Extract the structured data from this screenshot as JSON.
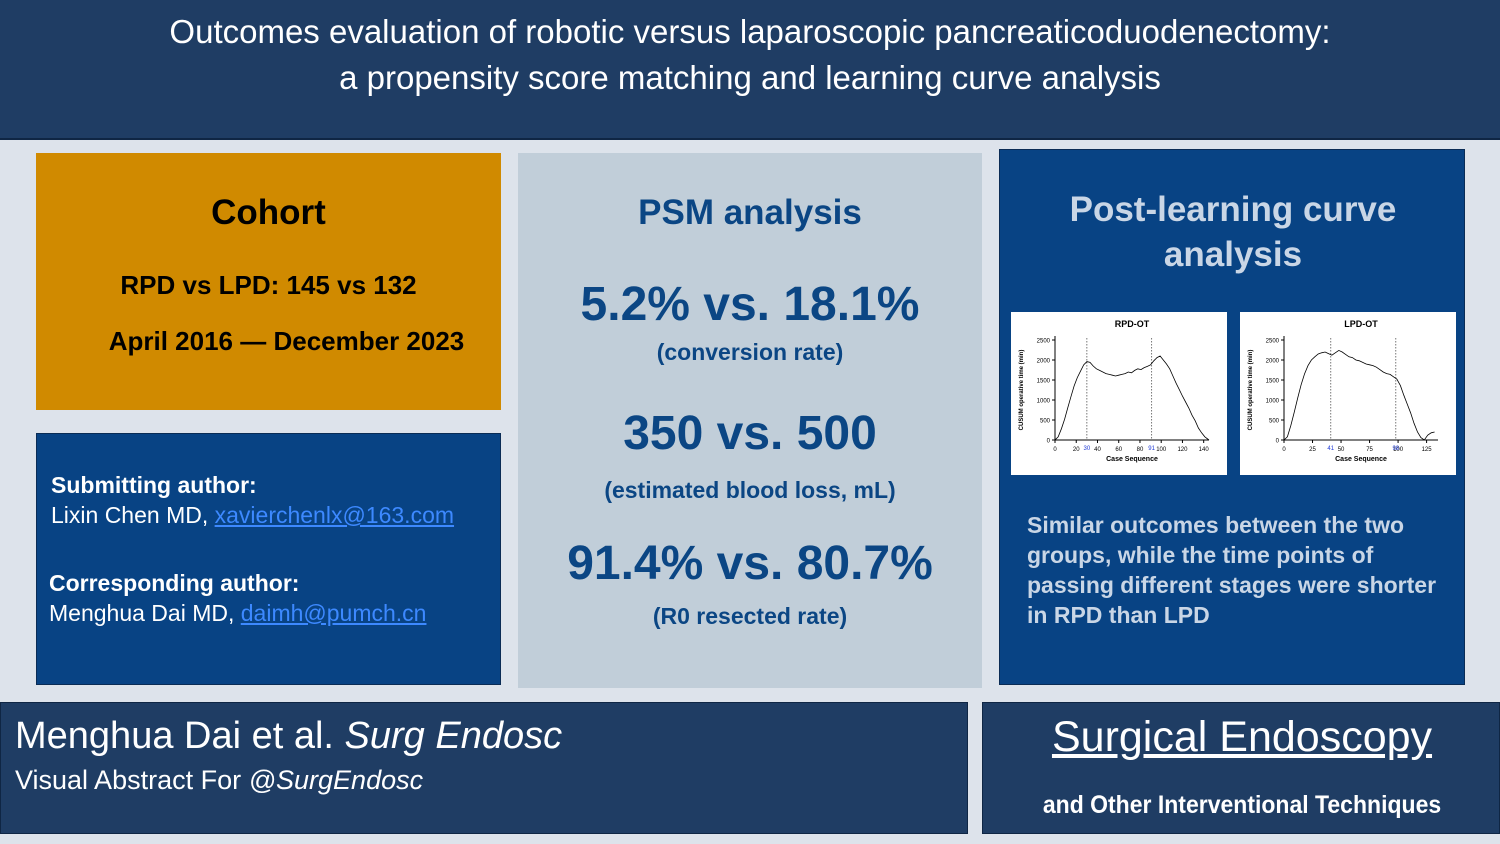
{
  "header": {
    "title_line1": "Outcomes evaluation of robotic versus laparoscopic pancreaticoduodenectomy:",
    "title_line2": "a propensity score matching and learning curve analysis"
  },
  "cohort": {
    "heading": "Cohort",
    "comparison": "RPD vs LPD: 145 vs 132",
    "period": "April 2016 — December 2023"
  },
  "authors": {
    "submitting_label": "Submitting author:",
    "submitting_name": "Lixin Chen MD, ",
    "submitting_email": "xavierchenlx@163.com",
    "corresponding_label": "Corresponding author:",
    "corresponding_name": "Menghua Dai MD, ",
    "corresponding_email": "daimh@pumch.cn"
  },
  "psm": {
    "heading": "PSM analysis",
    "stats": [
      {
        "value": "5.2% vs. 18.1%",
        "label": "(conversion rate)"
      },
      {
        "value": "350 vs. 500",
        "label": "(estimated blood loss, mL)"
      },
      {
        "value": "91.4% vs. 80.7%",
        "label": "(R0 resected rate)"
      }
    ]
  },
  "post_learning": {
    "heading_line1": "Post-learning curve",
    "heading_line2": "analysis",
    "summary": "Similar outcomes between the two groups, while the time points of passing different stages were shorter in RPD than LPD"
  },
  "chart_data": [
    {
      "type": "line",
      "title": "RPD-OT",
      "xlabel": "Case Sequence",
      "ylabel": "CUSUM operative time (min)",
      "xticks": [
        "0",
        "20",
        "40",
        "60",
        "80",
        "100",
        "120",
        "140"
      ],
      "yticks": [
        "0",
        "500",
        "1000",
        "1500",
        "2000",
        "2500"
      ],
      "xlim": [
        0,
        145
      ],
      "ylim": [
        0,
        2500
      ],
      "cut_points": [
        "30",
        "91"
      ],
      "x": [
        0,
        3,
        6,
        9,
        12,
        15,
        18,
        21,
        24,
        27,
        30,
        33,
        36,
        39,
        42,
        45,
        48,
        51,
        54,
        57,
        60,
        63,
        66,
        69,
        72,
        75,
        78,
        81,
        84,
        87,
        90,
        93,
        96,
        99,
        102,
        105,
        108,
        111,
        114,
        117,
        120,
        123,
        126,
        129,
        132,
        135,
        138,
        141,
        145
      ],
      "values": [
        0,
        80,
        280,
        520,
        800,
        1080,
        1350,
        1560,
        1720,
        1880,
        1960,
        1940,
        1850,
        1780,
        1740,
        1700,
        1660,
        1640,
        1620,
        1600,
        1620,
        1640,
        1660,
        1700,
        1680,
        1740,
        1780,
        1760,
        1810,
        1840,
        1880,
        1980,
        2060,
        2100,
        2000,
        1900,
        1780,
        1600,
        1420,
        1260,
        1100,
        950,
        800,
        620,
        480,
        300,
        180,
        80,
        0
      ]
    },
    {
      "type": "line",
      "title": "LPD-OT",
      "xlabel": "Case Sequence",
      "ylabel": "CUSUM operative time (min)",
      "xticks": [
        "0",
        "25",
        "50",
        "75",
        "100",
        "125"
      ],
      "yticks": [
        "0",
        "500",
        "1000",
        "1500",
        "2000",
        "2500"
      ],
      "xlim": [
        0,
        135
      ],
      "ylim": [
        0,
        2500
      ],
      "cut_points": [
        "41",
        "98"
      ],
      "x": [
        0,
        3,
        6,
        9,
        12,
        15,
        18,
        21,
        24,
        27,
        30,
        33,
        36,
        39,
        42,
        45,
        48,
        51,
        54,
        57,
        60,
        63,
        66,
        69,
        72,
        75,
        78,
        81,
        84,
        87,
        90,
        93,
        96,
        99,
        102,
        105,
        108,
        111,
        114,
        117,
        120,
        123,
        126,
        129,
        132
      ],
      "values": [
        0,
        80,
        360,
        700,
        1050,
        1380,
        1650,
        1860,
        2000,
        2080,
        2150,
        2180,
        2200,
        2160,
        2120,
        2180,
        2240,
        2200,
        2140,
        2080,
        2060,
        2000,
        1980,
        1940,
        1900,
        1880,
        1860,
        1820,
        1760,
        1700,
        1660,
        1640,
        1580,
        1520,
        1360,
        1120,
        900,
        680,
        420,
        200,
        60,
        0,
        120,
        180,
        200
      ]
    }
  ],
  "footer": {
    "citation_authors": "Menghua Dai et al. ",
    "citation_journal": "Surg Endosc",
    "subtitle_prefix": "Visual Abstract For ",
    "subtitle_handle": "@SurgEndosc",
    "journal_name": "Surgical Endoscopy",
    "journal_subtitle": "and Other Interventional Techniques"
  },
  "colors": {
    "header_bg": "#1f3d64",
    "cohort_bg": "#d08a00",
    "panel_blue": "#084384",
    "psm_bg": "#c1ced9",
    "psm_text": "#0b4684",
    "link": "#3d89ff"
  }
}
